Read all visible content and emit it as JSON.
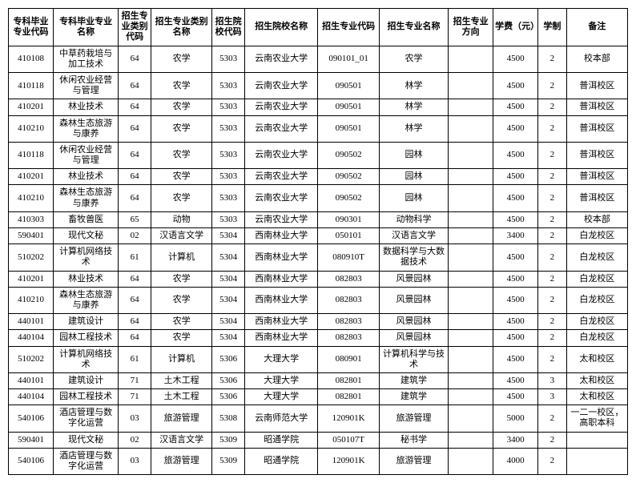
{
  "columns": [
    "专科毕业专业代码",
    "专科毕业专业名称",
    "招生专业类别代码",
    "招生专业类别名称",
    "招生院校代码",
    "招生院校名称",
    "招生专业代码",
    "招生专业名称",
    "招生专业方向",
    "学费（元）",
    "学制",
    "备注"
  ],
  "rows": [
    [
      "410108",
      "中草药栽培与加工技术",
      "64",
      "农学",
      "5303",
      "云南农业大学",
      "090101_01",
      "农学",
      "",
      "4500",
      "2",
      "校本部"
    ],
    [
      "410118",
      "休闲农业经营与管理",
      "64",
      "农学",
      "5303",
      "云南农业大学",
      "090501",
      "林学",
      "",
      "4500",
      "2",
      "普洱校区"
    ],
    [
      "410201",
      "林业技术",
      "64",
      "农学",
      "5303",
      "云南农业大学",
      "090501",
      "林学",
      "",
      "4500",
      "2",
      "普洱校区"
    ],
    [
      "410210",
      "森林生态旅游与康养",
      "64",
      "农学",
      "5303",
      "云南农业大学",
      "090501",
      "林学",
      "",
      "4500",
      "2",
      "普洱校区"
    ],
    [
      "410118",
      "休闲农业经营与管理",
      "64",
      "农学",
      "5303",
      "云南农业大学",
      "090502",
      "园林",
      "",
      "4500",
      "2",
      "普洱校区"
    ],
    [
      "410201",
      "林业技术",
      "64",
      "农学",
      "5303",
      "云南农业大学",
      "090502",
      "园林",
      "",
      "4500",
      "2",
      "普洱校区"
    ],
    [
      "410210",
      "森林生态旅游与康养",
      "64",
      "农学",
      "5303",
      "云南农业大学",
      "090502",
      "园林",
      "",
      "4500",
      "2",
      "普洱校区"
    ],
    [
      "410303",
      "畜牧兽医",
      "65",
      "动物",
      "5303",
      "云南农业大学",
      "090301",
      "动物科学",
      "",
      "4500",
      "2",
      "校本部"
    ],
    [
      "590401",
      "现代文秘",
      "02",
      "汉语言文学",
      "5304",
      "西南林业大学",
      "050101",
      "汉语言文学",
      "",
      "3400",
      "2",
      "白龙校区"
    ],
    [
      "510202",
      "计算机网络技术",
      "61",
      "计算机",
      "5304",
      "西南林业大学",
      "080910T",
      "数据科学与大数据技术",
      "",
      "4500",
      "2",
      "白龙校区"
    ],
    [
      "410201",
      "林业技术",
      "64",
      "农学",
      "5304",
      "西南林业大学",
      "082803",
      "风景园林",
      "",
      "4500",
      "2",
      "白龙校区"
    ],
    [
      "410210",
      "森林生态旅游与康养",
      "64",
      "农学",
      "5304",
      "西南林业大学",
      "082803",
      "风景园林",
      "",
      "4500",
      "2",
      "白龙校区"
    ],
    [
      "440101",
      "建筑设计",
      "64",
      "农学",
      "5304",
      "西南林业大学",
      "082803",
      "风景园林",
      "",
      "4500",
      "2",
      "白龙校区"
    ],
    [
      "440104",
      "园林工程技术",
      "64",
      "农学",
      "5304",
      "西南林业大学",
      "082803",
      "风景园林",
      "",
      "4500",
      "2",
      "白龙校区"
    ],
    [
      "510202",
      "计算机网络技术",
      "61",
      "计算机",
      "5306",
      "大理大学",
      "080901",
      "计算机科学与技术",
      "",
      "4500",
      "2",
      "太和校区"
    ],
    [
      "440101",
      "建筑设计",
      "71",
      "土木工程",
      "5306",
      "大理大学",
      "082801",
      "建筑学",
      "",
      "4500",
      "3",
      "太和校区"
    ],
    [
      "440104",
      "园林工程技术",
      "71",
      "土木工程",
      "5306",
      "大理大学",
      "082801",
      "建筑学",
      "",
      "4500",
      "3",
      "太和校区"
    ],
    [
      "540106",
      "酒店管理与数字化运营",
      "03",
      "旅游管理",
      "5308",
      "云南师范大学",
      "120901K",
      "旅游管理",
      "",
      "5000",
      "2",
      "一二一校区，高职本科"
    ],
    [
      "590401",
      "现代文秘",
      "02",
      "汉语言文学",
      "5309",
      "昭通学院",
      "050107T",
      "秘书学",
      "",
      "3400",
      "2",
      ""
    ],
    [
      "540106",
      "酒店管理与数字化运营",
      "03",
      "旅游管理",
      "5309",
      "昭通学院",
      "120901K",
      "旅游管理",
      "",
      "4000",
      "2",
      ""
    ]
  ]
}
